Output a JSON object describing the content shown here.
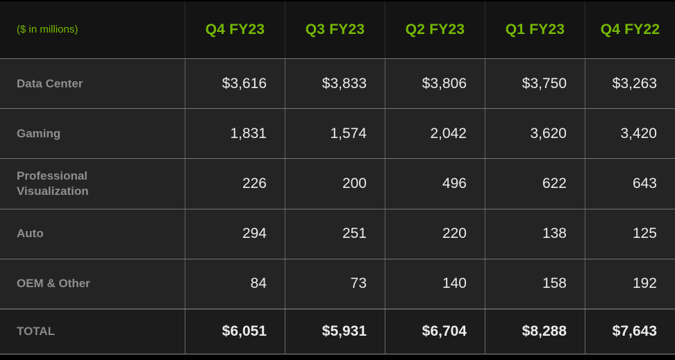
{
  "table": {
    "unit_label": "($ in millions)",
    "columns": [
      "Q4 FY23",
      "Q3 FY23",
      "Q2 FY23",
      "Q1 FY23",
      "Q4 FY22"
    ],
    "rows": [
      {
        "label": "Data Center",
        "values": [
          "$3,616",
          "$3,833",
          "$3,806",
          "$3,750",
          "$3,263"
        ]
      },
      {
        "label": "Gaming",
        "values": [
          "1,831",
          "1,574",
          "2,042",
          "3,620",
          "3,420"
        ]
      },
      {
        "label": "Professional Visualization",
        "values": [
          "226",
          "200",
          "496",
          "622",
          "643"
        ]
      },
      {
        "label": "Auto",
        "values": [
          "294",
          "251",
          "220",
          "138",
          "125"
        ]
      },
      {
        "label": "OEM & Other",
        "values": [
          "84",
          "73",
          "140",
          "158",
          "192"
        ]
      }
    ],
    "total": {
      "label": "TOTAL",
      "values": [
        "$6,051",
        "$5,931",
        "$6,704",
        "$8,288",
        "$7,643"
      ]
    }
  },
  "colors": {
    "accent_green": "#76b900",
    "header_bg": "#141414",
    "row_bg": "#242424",
    "total_bg": "#1c1c1c",
    "label_gray": "#8f8f8f",
    "value_white": "#ececec",
    "grid_line": "#767676",
    "page_bg": "#000000"
  },
  "chart_data": {
    "type": "table",
    "title": "($ in millions)",
    "columns": [
      "Q4 FY23",
      "Q3 FY23",
      "Q2 FY23",
      "Q1 FY23",
      "Q4 FY22"
    ],
    "rows": [
      {
        "label": "Data Center",
        "values": [
          3616,
          3833,
          3806,
          3750,
          3263
        ]
      },
      {
        "label": "Gaming",
        "values": [
          1831,
          1574,
          2042,
          3620,
          3420
        ]
      },
      {
        "label": "Professional Visualization",
        "values": [
          226,
          200,
          496,
          622,
          643
        ]
      },
      {
        "label": "Auto",
        "values": [
          294,
          251,
          220,
          138,
          125
        ]
      },
      {
        "label": "OEM & Other",
        "values": [
          84,
          73,
          140,
          158,
          192
        ]
      },
      {
        "label": "TOTAL",
        "values": [
          6051,
          5931,
          6704,
          8288,
          7643
        ]
      }
    ]
  }
}
